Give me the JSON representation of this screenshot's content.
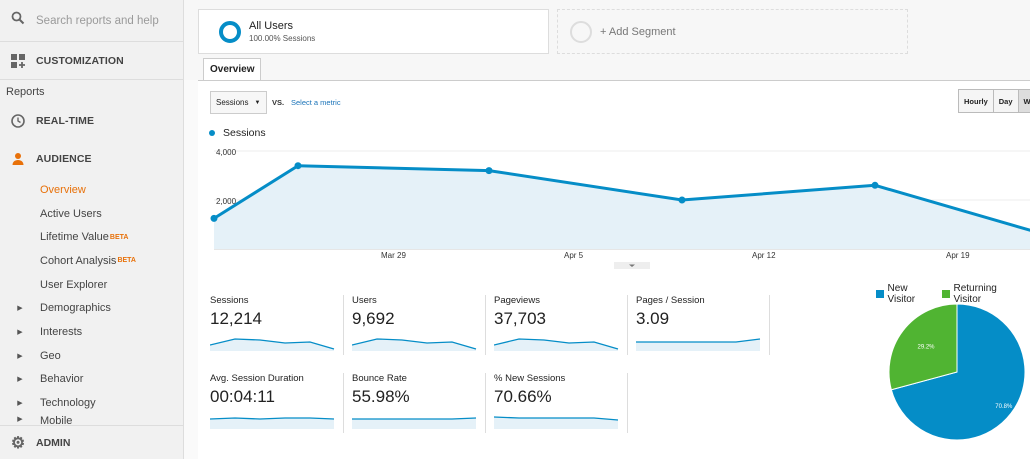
{
  "sidebar": {
    "search_placeholder": "Search reports and help",
    "customization_label": "CUSTOMIZATION",
    "reports_label": "Reports",
    "realtime_label": "REAL-TIME",
    "audience_label": "AUDIENCE",
    "items": [
      {
        "label": "Overview",
        "active": true
      },
      {
        "label": "Active Users"
      },
      {
        "label": "Lifetime Value",
        "badge": "BETA"
      },
      {
        "label": "Cohort Analysis",
        "badge": "BETA"
      },
      {
        "label": "User Explorer"
      }
    ],
    "groups": [
      "Demographics",
      "Interests",
      "Geo",
      "Behavior",
      "Technology",
      "Mobile"
    ],
    "admin_label": "ADMIN"
  },
  "segments": {
    "active_title": "All Users",
    "active_sub": "100.00% Sessions",
    "add_label": "+ Add Segment"
  },
  "tab": {
    "label": "Overview"
  },
  "controls": {
    "metric": "Sessions",
    "vs": "VS.",
    "select_metric": "Select a metric",
    "time_buttons": [
      "Hourly",
      "Day",
      "W"
    ]
  },
  "line_chart": {
    "type": "line",
    "legend": "Sessions",
    "y_ticks": [
      "4,000",
      "2,000"
    ],
    "x_ticks": [
      "Mar 29",
      "Apr 5",
      "Apr 12",
      "Apr 19"
    ],
    "ylim": [
      0,
      4000
    ],
    "points": [
      1250,
      3400,
      3200,
      2000,
      2600,
      600
    ],
    "color": "#058dc7"
  },
  "scorecards": [
    {
      "label": "Sessions",
      "value": "12,214"
    },
    {
      "label": "Users",
      "value": "9,692"
    },
    {
      "label": "Pageviews",
      "value": "37,703"
    },
    {
      "label": "Pages / Session",
      "value": "3.09"
    },
    {
      "label": "Avg. Session Duration",
      "value": "00:04:11"
    },
    {
      "label": "Bounce Rate",
      "value": "55.98%"
    },
    {
      "label": "% New Sessions",
      "value": "70.66%"
    }
  ],
  "chart_data": {
    "type": "pie",
    "series": [
      {
        "name": "New Visitor",
        "value": 70.8,
        "label": "70.8%",
        "color": "#058dc7"
      },
      {
        "name": "Returning Visitor",
        "value": 29.2,
        "label": "29.2%",
        "color": "#50b432"
      }
    ]
  }
}
